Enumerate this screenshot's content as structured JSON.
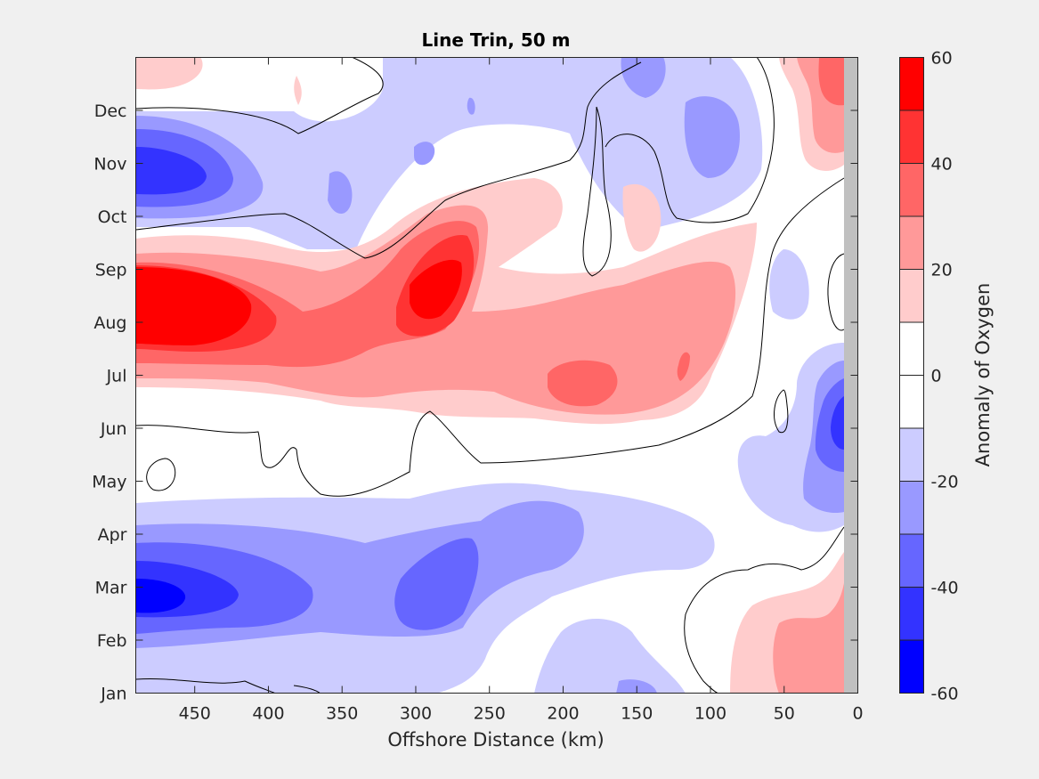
{
  "chart_data": {
    "type": "heatmap",
    "subtype": "filled-contour",
    "title": "Line Trin, 50 m",
    "xlabel": "Offshore Distance (km)",
    "ylabel": "",
    "x_reversed": true,
    "xlim": [
      490,
      0
    ],
    "xticks": [
      450,
      400,
      350,
      300,
      250,
      200,
      150,
      100,
      50,
      0
    ],
    "ylim": [
      1,
      13
    ],
    "yticks": [
      1,
      2,
      3,
      4,
      5,
      6,
      7,
      8,
      9,
      10,
      11,
      12
    ],
    "ytick_labels": [
      "Jan",
      "Feb",
      "Mar",
      "Apr",
      "May",
      "Jun",
      "Jul",
      "Aug",
      "Sep",
      "Oct",
      "Nov",
      "Dec"
    ],
    "colorbar": {
      "label": "Anomaly of Oxygen",
      "range": [
        -60,
        60
      ],
      "ticks": [
        -60,
        -40,
        -20,
        0,
        20,
        40,
        60
      ],
      "levels": [
        -60,
        -50,
        -40,
        -30,
        -20,
        -10,
        0,
        10,
        20,
        30,
        40,
        50,
        60
      ],
      "colors": [
        "#0000ff",
        "#3333ff",
        "#6666ff",
        "#9999ff",
        "#ccccff",
        "#ffffff",
        "#ffffff",
        "#ffcccc",
        "#ff9999",
        "#ff6666",
        "#ff3333",
        "#ff0000"
      ]
    },
    "zero_contour": "black line",
    "no_data_region": {
      "x": [
        0,
        10
      ],
      "color": "#c0c0c0"
    },
    "features": [
      {
        "x": 450,
        "y": 8.3,
        "value": 60
      },
      {
        "x": 285,
        "y": 8.7,
        "value": 55
      },
      {
        "x": 185,
        "y": 7.0,
        "value": 38
      },
      {
        "x": 470,
        "y": 11.0,
        "value": -45
      },
      {
        "x": 470,
        "y": 3.1,
        "value": -55
      },
      {
        "x": 290,
        "y": 3.2,
        "value": -35
      },
      {
        "x": 30,
        "y": 6.0,
        "value": -40
      },
      {
        "x": 30,
        "y": 2.0,
        "value": 25
      },
      {
        "x": 30,
        "y": 12.3,
        "value": 35
      }
    ]
  }
}
